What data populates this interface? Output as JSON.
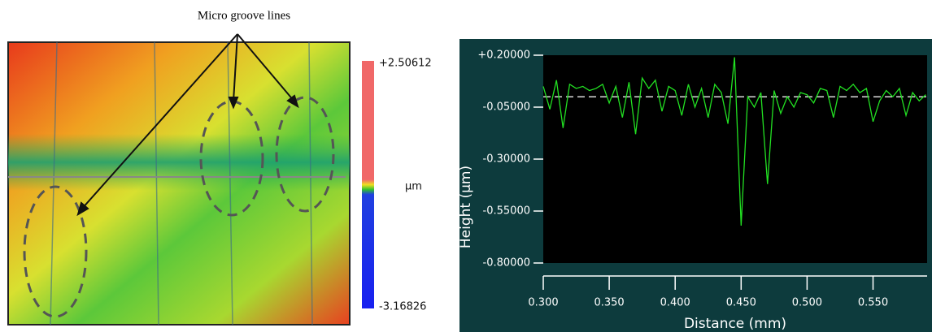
{
  "annotation": "Micro groove lines",
  "colorbar": {
    "max_label": "+2.50612",
    "unit": "µm",
    "min_label": "-3.16826"
  },
  "chart_data": {
    "type": "line",
    "xlabel": "Distance (mm)",
    "ylabel": "Height (µm)",
    "x": [
      0.3,
      0.305,
      0.31,
      0.315,
      0.32,
      0.325,
      0.33,
      0.335,
      0.34,
      0.345,
      0.35,
      0.355,
      0.36,
      0.365,
      0.37,
      0.375,
      0.38,
      0.385,
      0.39,
      0.395,
      0.4,
      0.405,
      0.41,
      0.415,
      0.42,
      0.425,
      0.43,
      0.435,
      0.44,
      0.445,
      0.45,
      0.455,
      0.46,
      0.465,
      0.47,
      0.475,
      0.48,
      0.485,
      0.49,
      0.495,
      0.5,
      0.505,
      0.51,
      0.515,
      0.52,
      0.525,
      0.53,
      0.535,
      0.54,
      0.545,
      0.55,
      0.555,
      0.56,
      0.565,
      0.57,
      0.575,
      0.58,
      0.585,
      0.59
    ],
    "series": [
      {
        "color": "#22e022",
        "values": [
          0.05,
          -0.06,
          0.08,
          -0.15,
          0.06,
          0.04,
          0.05,
          0.03,
          0.04,
          0.06,
          -0.03,
          0.05,
          -0.1,
          0.07,
          -0.18,
          0.09,
          0.04,
          0.08,
          -0.07,
          0.05,
          0.03,
          -0.09,
          0.06,
          -0.05,
          0.04,
          -0.1,
          0.06,
          0.02,
          -0.13,
          0.19,
          -0.62,
          0.0,
          -0.05,
          0.02,
          -0.42,
          0.03,
          -0.08,
          0.0,
          -0.05,
          0.02,
          0.01,
          -0.03,
          0.04,
          0.03,
          -0.1,
          0.05,
          0.03,
          0.06,
          0.02,
          0.04,
          -0.12,
          -0.02,
          0.03,
          0.0,
          0.04,
          -0.09,
          0.02,
          -0.02,
          0.01
        ]
      }
    ],
    "reference_line": 0,
    "xlim": [
      0.3,
      0.591
    ],
    "ylim": [
      -0.8,
      0.2
    ],
    "xticks": [
      {
        "value": 0.3,
        "label": "0.300"
      },
      {
        "value": 0.35,
        "label": "0.350"
      },
      {
        "value": 0.4,
        "label": "0.400"
      },
      {
        "value": 0.45,
        "label": "0.450"
      },
      {
        "value": 0.5,
        "label": "0.500"
      },
      {
        "value": 0.55,
        "label": "0.550"
      }
    ],
    "yticks": [
      {
        "value": 0.2,
        "label": "+0.20000"
      },
      {
        "value": -0.05,
        "label": "-0.05000"
      },
      {
        "value": -0.3,
        "label": "-0.30000"
      },
      {
        "value": -0.55,
        "label": "-0.55000"
      },
      {
        "value": -0.8,
        "label": "-0.80000"
      }
    ]
  }
}
